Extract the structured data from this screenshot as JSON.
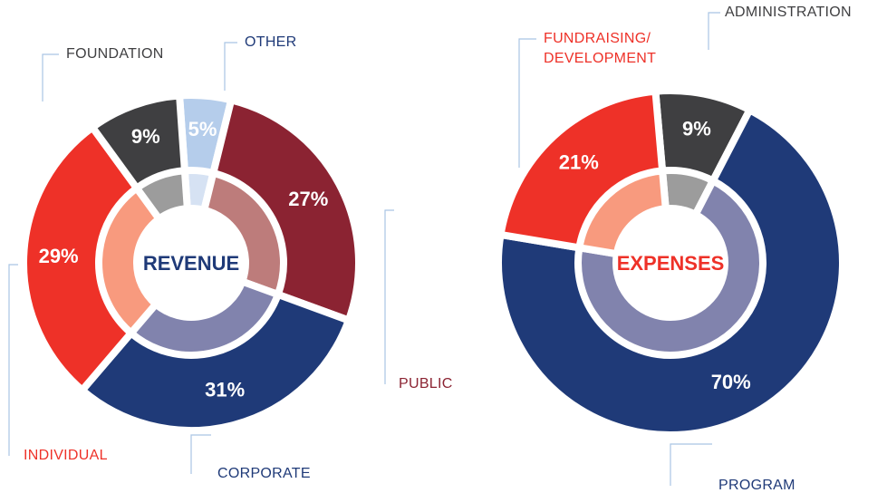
{
  "chart_data": [
    {
      "type": "pie",
      "center_label": "REVENUE",
      "categories": [
        "OTHER",
        "PUBLIC",
        "CORPORATE",
        "INDIVIDUAL",
        "FOUNDATION"
      ],
      "values": [
        5,
        27,
        31,
        29,
        9
      ],
      "value_labels": [
        "5%",
        "27%",
        "31%",
        "29%",
        "9%"
      ],
      "colors": [
        "#b5cdeb",
        "#8b2332",
        "#1f3a78",
        "#ee3128",
        "#3f3f41"
      ],
      "inner_colors": [
        "#d6e2f3",
        "#bd7c7b",
        "#8183ad",
        "#f89a7e",
        "#9c9c9c"
      ],
      "label_colors": [
        "#1f3a78",
        "#8b2332",
        "#1f3a78",
        "#ee3128",
        "#3f3f41"
      ],
      "center_color": "#1f3a78"
    },
    {
      "type": "pie",
      "center_label": "EXPENSES",
      "categories": [
        "ADMINISTRATION",
        "PROGRAM",
        "FUNDRAISING/\nDEVELOPMENT"
      ],
      "values": [
        9,
        70,
        21
      ],
      "value_labels": [
        "9%",
        "70%",
        "21%"
      ],
      "colors": [
        "#3f3f41",
        "#1f3a78",
        "#ee3128"
      ],
      "inner_colors": [
        "#9c9c9c",
        "#8183ad",
        "#f89a7e"
      ],
      "label_colors": [
        "#3f3f41",
        "#1f3a78",
        "#ee3128"
      ],
      "center_color": "#ee3128"
    }
  ]
}
